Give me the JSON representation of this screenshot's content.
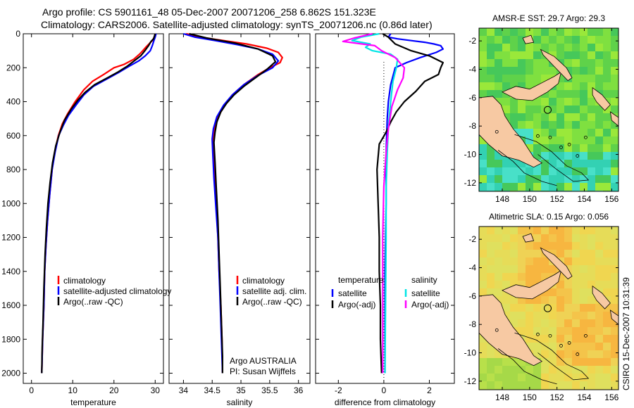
{
  "header": {
    "line1": "Argo profile: CS 5901161_48 05-Dec-2007 20071206_258 6.862S 151.323E",
    "line2": "Climatology: CARS2006. Satellite-adjusted climatology: synTS_20071206.nc (0.86d later)"
  },
  "footer": {
    "credit": "CSIRO 15-Dec-2007 10:31:39"
  },
  "colors": {
    "climatology": "#ff0000",
    "satellite": "#0000ff",
    "argo": "#000000",
    "sal_satellite": "#00e5e5",
    "sal_argo": "#ff00ff",
    "land": "#f7c9a3"
  },
  "chart_data": [
    {
      "type": "line",
      "id": "temperature",
      "xlabel": "temperature",
      "ylabel": "",
      "xlim": [
        -2,
        32
      ],
      "ylim": [
        2060,
        0
      ],
      "xticks": [
        0,
        10,
        20,
        30
      ],
      "yticks": [
        0,
        200,
        400,
        600,
        800,
        1000,
        1200,
        1400,
        1600,
        1800,
        2000
      ],
      "legend": {
        "placement": "lower-right",
        "entries": [
          "climatology",
          "satellite-adjusted climatology",
          "Argo(..raw -QC)"
        ]
      },
      "series": [
        {
          "name": "climatology",
          "color_key": "climatology",
          "points": [
            [
              30.0,
              0
            ],
            [
              29.8,
              20
            ],
            [
              29.3,
              40
            ],
            [
              28.5,
              60
            ],
            [
              27.7,
              80
            ],
            [
              27.0,
              100
            ],
            [
              26.2,
              120
            ],
            [
              24.8,
              150
            ],
            [
              22.5,
              180
            ],
            [
              20.0,
              200
            ],
            [
              17.5,
              240
            ],
            [
              14.8,
              280
            ],
            [
              12.7,
              330
            ],
            [
              10.6,
              400
            ],
            [
              8.8,
              470
            ],
            [
              7.5,
              530
            ],
            [
              6.5,
              600
            ],
            [
              5.6,
              700
            ],
            [
              5.0,
              800
            ],
            [
              4.4,
              950
            ],
            [
              3.9,
              1100
            ],
            [
              3.5,
              1250
            ],
            [
              3.2,
              1400
            ],
            [
              3.0,
              1600
            ],
            [
              2.7,
              1800
            ],
            [
              2.5,
              2000
            ]
          ]
        },
        {
          "name": "satellite-adjusted climatology",
          "color_key": "satellite",
          "points": [
            [
              30.2,
              0
            ],
            [
              30.0,
              20
            ],
            [
              29.7,
              40
            ],
            [
              29.3,
              70
            ],
            [
              28.8,
              100
            ],
            [
              27.6,
              130
            ],
            [
              26.0,
              160
            ],
            [
              23.8,
              190
            ],
            [
              21.0,
              230
            ],
            [
              18.0,
              270
            ],
            [
              15.0,
              310
            ],
            [
              12.7,
              360
            ],
            [
              10.8,
              420
            ],
            [
              9.0,
              480
            ],
            [
              7.7,
              540
            ],
            [
              6.6,
              600
            ],
            [
              5.7,
              700
            ],
            [
              5.0,
              800
            ],
            [
              4.4,
              950
            ],
            [
              3.9,
              1100
            ],
            [
              3.5,
              1250
            ],
            [
              3.2,
              1400
            ],
            [
              3.0,
              1600
            ],
            [
              2.7,
              1800
            ],
            [
              2.5,
              2000
            ]
          ]
        },
        {
          "name": "Argo(..raw -QC)",
          "color_key": "argo",
          "points": [
            [
              30.0,
              0
            ],
            [
              29.6,
              30
            ],
            [
              29.0,
              45
            ],
            [
              28.4,
              70
            ],
            [
              27.5,
              100
            ],
            [
              26.5,
              130
            ],
            [
              24.9,
              160
            ],
            [
              23.3,
              190
            ],
            [
              21.0,
              225
            ],
            [
              18.4,
              260
            ],
            [
              15.3,
              300
            ],
            [
              13.0,
              345
            ],
            [
              11.3,
              390
            ],
            [
              9.6,
              445
            ],
            [
              8.0,
              510
            ],
            [
              6.9,
              580
            ],
            [
              5.9,
              660
            ],
            [
              5.1,
              760
            ],
            [
              4.5,
              880
            ],
            [
              4.0,
              1000
            ],
            [
              3.6,
              1150
            ],
            [
              3.3,
              1300
            ],
            [
              3.0,
              1500
            ],
            [
              2.8,
              1700
            ],
            [
              2.6,
              1850
            ],
            [
              2.5,
              2000
            ]
          ]
        }
      ]
    },
    {
      "type": "line",
      "id": "salinity",
      "xlabel": "salinity",
      "ylabel": "",
      "xlim": [
        33.75,
        36.2
      ],
      "ylim": [
        2060,
        0
      ],
      "xticks": [
        34,
        34.5,
        35,
        35.5,
        36
      ],
      "yticks": [
        0,
        200,
        400,
        600,
        800,
        1000,
        1200,
        1400,
        1600,
        1800,
        2000
      ],
      "legend": {
        "placement": "lower-right",
        "entries": [
          "climatology",
          "satellite adj. clim.",
          "Argo(..raw -QC)"
        ]
      },
      "annotations": [
        "Argo AUSTRALIA",
        "PI: Susan Wijffels"
      ],
      "series": [
        {
          "name": "climatology",
          "color_key": "climatology",
          "points": [
            [
              34.05,
              0
            ],
            [
              34.3,
              20
            ],
            [
              34.7,
              40
            ],
            [
              35.1,
              60
            ],
            [
              35.45,
              85
            ],
            [
              35.65,
              110
            ],
            [
              35.72,
              140
            ],
            [
              35.68,
              170
            ],
            [
              35.5,
              200
            ],
            [
              35.3,
              240
            ],
            [
              35.05,
              300
            ],
            [
              34.85,
              360
            ],
            [
              34.72,
              420
            ],
            [
              34.6,
              490
            ],
            [
              34.55,
              550
            ],
            [
              34.52,
              600
            ],
            [
              34.52,
              700
            ],
            [
              34.54,
              850
            ],
            [
              34.57,
              1000
            ],
            [
              34.6,
              1200
            ],
            [
              34.62,
              1400
            ],
            [
              34.65,
              1600
            ],
            [
              34.67,
              1800
            ],
            [
              34.68,
              2000
            ]
          ]
        },
        {
          "name": "satellite adj. clim.",
          "color_key": "satellite",
          "points": [
            [
              34.0,
              0
            ],
            [
              34.2,
              20
            ],
            [
              34.55,
              40
            ],
            [
              34.95,
              65
            ],
            [
              35.3,
              90
            ],
            [
              35.55,
              120
            ],
            [
              35.65,
              160
            ],
            [
              35.55,
              200
            ],
            [
              35.3,
              245
            ],
            [
              35.05,
              300
            ],
            [
              34.85,
              360
            ],
            [
              34.7,
              420
            ],
            [
              34.58,
              490
            ],
            [
              34.52,
              560
            ],
            [
              34.5,
              620
            ],
            [
              34.51,
              700
            ],
            [
              34.53,
              850
            ],
            [
              34.56,
              1000
            ],
            [
              34.6,
              1200
            ],
            [
              34.62,
              1400
            ],
            [
              34.64,
              1600
            ],
            [
              34.66,
              1800
            ],
            [
              34.68,
              2000
            ]
          ]
        },
        {
          "name": "Argo(..raw -QC)",
          "color_key": "argo",
          "points": [
            [
              34.1,
              0
            ],
            [
              34.4,
              25
            ],
            [
              34.9,
              55
            ],
            [
              35.3,
              90
            ],
            [
              35.55,
              130
            ],
            [
              35.6,
              165
            ],
            [
              35.45,
              210
            ],
            [
              35.25,
              260
            ],
            [
              35.05,
              310
            ],
            [
              34.88,
              360
            ],
            [
              34.75,
              410
            ],
            [
              34.65,
              460
            ],
            [
              34.58,
              520
            ],
            [
              34.55,
              580
            ],
            [
              34.53,
              640
            ],
            [
              34.55,
              760
            ],
            [
              34.57,
              900
            ],
            [
              34.6,
              1100
            ],
            [
              34.62,
              1300
            ],
            [
              34.64,
              1500
            ],
            [
              34.66,
              1700
            ],
            [
              34.68,
              1900
            ],
            [
              34.68,
              2000
            ]
          ]
        }
      ]
    },
    {
      "type": "line",
      "id": "difference",
      "xlabel": "difference from climatology",
      "ylabel": "",
      "xlim": [
        -3,
        3.1
      ],
      "ylim": [
        2060,
        0
      ],
      "xticks": [
        -2,
        0,
        2
      ],
      "yticks": [
        0,
        200,
        400,
        600,
        800,
        1000,
        1200,
        1400,
        1600,
        1800,
        2000
      ],
      "legend": {
        "placement": "lower-center",
        "entries": [
          "temperature",
          "satellite",
          "Argo(-adj)",
          "salinity",
          "satellite",
          "Argo(-adj)"
        ]
      },
      "series": [
        {
          "name": "satellite",
          "group": "temperature",
          "color_key": "satellite",
          "points": [
            [
              0.3,
              0
            ],
            [
              0.2,
              20
            ],
            [
              0.6,
              30
            ],
            [
              1.2,
              40
            ],
            [
              1.8,
              50
            ],
            [
              2.2,
              60
            ],
            [
              2.5,
              70
            ],
            [
              2.6,
              90
            ],
            [
              2.3,
              110
            ],
            [
              1.6,
              140
            ],
            [
              1.0,
              170
            ],
            [
              0.5,
              200
            ],
            [
              0.3,
              300
            ],
            [
              0.2,
              400
            ],
            [
              0.15,
              500
            ],
            [
              0.1,
              700
            ],
            [
              0.1,
              1000
            ],
            [
              0.05,
              1400
            ],
            [
              0.05,
              2000
            ]
          ]
        },
        {
          "name": "Argo(-adj)",
          "group": "temperature",
          "color_key": "argo",
          "points": [
            [
              -0.05,
              0
            ],
            [
              0.2,
              20
            ],
            [
              0.5,
              60
            ],
            [
              1.2,
              100
            ],
            [
              2.0,
              130
            ],
            [
              2.6,
              170
            ],
            [
              2.5,
              200
            ],
            [
              2.4,
              240
            ],
            [
              1.8,
              280
            ],
            [
              1.4,
              340
            ],
            [
              0.9,
              400
            ],
            [
              0.55,
              460
            ],
            [
              0.3,
              520
            ],
            [
              0.1,
              580
            ],
            [
              -0.2,
              650
            ],
            [
              -0.3,
              800
            ],
            [
              -0.25,
              1000
            ],
            [
              -0.2,
              1200
            ],
            [
              -0.2,
              1400
            ],
            [
              -0.15,
              1600
            ],
            [
              -0.15,
              1800
            ],
            [
              -0.1,
              2000
            ]
          ]
        },
        {
          "name": "satellite",
          "group": "salinity",
          "color_key": "sal_satellite",
          "points": [
            [
              -0.2,
              0
            ],
            [
              -1.0,
              20
            ],
            [
              -1.4,
              40
            ],
            [
              -0.6,
              60
            ],
            [
              -0.8,
              80
            ],
            [
              -0.5,
              100
            ],
            [
              0.3,
              120
            ],
            [
              0.6,
              150
            ],
            [
              0.55,
              200
            ],
            [
              0.4,
              280
            ],
            [
              0.3,
              400
            ],
            [
              0.2,
              550
            ],
            [
              0.15,
              700
            ],
            [
              0.1,
              900
            ],
            [
              0.1,
              1200
            ],
            [
              0.08,
              1500
            ],
            [
              0.05,
              2000
            ]
          ]
        },
        {
          "name": "Argo(-adj)",
          "group": "salinity",
          "color_key": "sal_argo",
          "points": [
            [
              -0.5,
              0
            ],
            [
              -1.3,
              25
            ],
            [
              -1.8,
              45
            ],
            [
              -0.4,
              70
            ],
            [
              -0.1,
              100
            ],
            [
              0.5,
              140
            ],
            [
              0.9,
              200
            ],
            [
              0.85,
              260
            ],
            [
              0.6,
              330
            ],
            [
              0.35,
              430
            ],
            [
              0.2,
              560
            ],
            [
              0.1,
              700
            ],
            [
              0.0,
              900
            ],
            [
              -0.05,
              1200
            ],
            [
              -0.05,
              1600
            ],
            [
              -0.05,
              2000
            ]
          ]
        }
      ]
    },
    {
      "type": "heatmap",
      "id": "sst-map",
      "title": "AMSR-E SST: 29.7 Argo: 29.3",
      "xlim": [
        146.3,
        156.5
      ],
      "ylim": [
        -12.6,
        -1.1
      ],
      "xticks": [
        148,
        150,
        152,
        154,
        156
      ],
      "yticks": [
        -2,
        -4,
        -6,
        -8,
        -10,
        -12
      ],
      "marker": {
        "lon": 151.323,
        "lat": -6.862
      }
    },
    {
      "type": "heatmap",
      "id": "sla-map",
      "title": "Altimetric SLA: 0.15 Argo: 0.056",
      "xlim": [
        146.3,
        156.5
      ],
      "ylim": [
        -12.6,
        -1.1
      ],
      "xticks": [
        148,
        150,
        152,
        154,
        156
      ],
      "yticks": [
        -2,
        -4,
        -6,
        -8,
        -10,
        -12
      ],
      "marker": {
        "lon": 151.323,
        "lat": -6.862
      }
    }
  ]
}
